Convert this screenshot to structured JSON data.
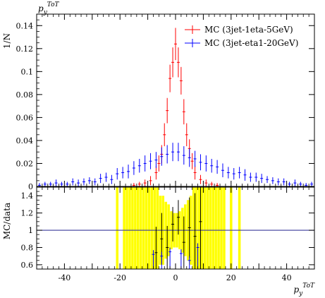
{
  "chart_data": {
    "type": "scatter",
    "title": "",
    "top_panel": {
      "ylabel": "1/N",
      "corner_label": "p_y^ToT",
      "ylim": [
        0,
        0.15
      ],
      "yticks": [
        0,
        0.02,
        0.04,
        0.06,
        0.08,
        0.1,
        0.12,
        0.14
      ],
      "ytick_labels": [
        "0",
        "0.02",
        "0.04",
        "0.06",
        "0.08",
        "0.1",
        "0.12",
        "0.14"
      ],
      "series": [
        {
          "name": "MC (3jet-1eta-5GeV)",
          "color": "#ff0000",
          "x": [
            -15,
            -13,
            -11,
            -9,
            -7,
            -6,
            -5,
            -4,
            -3,
            -2,
            -1,
            0,
            1,
            2,
            3,
            4,
            5,
            6,
            7,
            9,
            11,
            13,
            15
          ],
          "y": [
            0.001,
            0.002,
            0.003,
            0.005,
            0.012,
            0.02,
            0.028,
            0.045,
            0.066,
            0.094,
            0.108,
            0.124,
            0.108,
            0.092,
            0.065,
            0.045,
            0.033,
            0.022,
            0.012,
            0.006,
            0.003,
            0.002,
            0.001
          ],
          "err": [
            0.002,
            0.002,
            0.003,
            0.004,
            0.006,
            0.007,
            0.008,
            0.01,
            0.011,
            0.012,
            0.013,
            0.014,
            0.013,
            0.012,
            0.011,
            0.01,
            0.008,
            0.007,
            0.006,
            0.004,
            0.003,
            0.002,
            0.002
          ]
        },
        {
          "name": "MC (3jet-eta1-20GeV)",
          "color": "#0000ff",
          "x": [
            -49,
            -47,
            -45,
            -43,
            -41,
            -39,
            -37,
            -35,
            -33,
            -31,
            -29,
            -27,
            -25,
            -23,
            -21,
            -19,
            -17,
            -15,
            -13,
            -11,
            -9,
            -7,
            -5,
            -3,
            -1,
            1,
            3,
            5,
            7,
            9,
            11,
            13,
            15,
            17,
            19,
            21,
            23,
            25,
            27,
            29,
            31,
            33,
            35,
            37,
            39,
            41,
            43,
            45,
            47,
            49
          ],
          "y": [
            0.001,
            0.002,
            0.002,
            0.003,
            0.002,
            0.002,
            0.004,
            0.003,
            0.004,
            0.005,
            0.004,
            0.007,
            0.008,
            0.006,
            0.011,
            0.012,
            0.013,
            0.016,
            0.018,
            0.02,
            0.022,
            0.023,
            0.026,
            0.028,
            0.03,
            0.03,
            0.027,
            0.025,
            0.024,
            0.021,
            0.02,
            0.018,
            0.017,
            0.014,
            0.012,
            0.011,
            0.012,
            0.01,
            0.008,
            0.008,
            0.007,
            0.006,
            0.005,
            0.004,
            0.004,
            0.002,
            0.003,
            0.002,
            0.001,
            0.002
          ],
          "err": [
            0.002,
            0.002,
            0.002,
            0.003,
            0.002,
            0.002,
            0.003,
            0.003,
            0.003,
            0.003,
            0.003,
            0.004,
            0.004,
            0.004,
            0.005,
            0.005,
            0.006,
            0.006,
            0.006,
            0.007,
            0.007,
            0.007,
            0.008,
            0.008,
            0.008,
            0.008,
            0.008,
            0.008,
            0.007,
            0.007,
            0.007,
            0.006,
            0.006,
            0.006,
            0.005,
            0.005,
            0.005,
            0.005,
            0.004,
            0.004,
            0.004,
            0.003,
            0.003,
            0.003,
            0.003,
            0.002,
            0.003,
            0.002,
            0.002,
            0.002
          ]
        }
      ],
      "legend_position": "top-right"
    },
    "ratio_panel": {
      "ylabel": "MC/data",
      "ylim": [
        0.55,
        1.5
      ],
      "yticks": [
        0.6,
        0.8,
        1,
        1.2,
        1.4
      ],
      "ytick_labels": [
        "0.6",
        "0.8",
        "1",
        "1.2",
        "1.4"
      ],
      "reference_line": 1,
      "band_color": "#ffff00",
      "band_x": [
        -21,
        -18.5,
        -17.5,
        -16.5,
        -15.5,
        -14.5,
        -13.5,
        -12.5,
        -11.5,
        -10.5,
        -9.5,
        -8.5,
        -7.5,
        -6.5,
        -5.5,
        -4.5,
        -3.5,
        -2.5,
        -1.5,
        -0.5,
        0.5,
        1.5,
        2.5,
        3.5,
        4.5,
        5.5,
        6.5,
        7.5,
        8.5,
        9.5,
        10.5,
        11.5,
        12.5,
        13.5,
        14.5,
        15.5,
        16.5,
        17.5,
        20,
        23
      ],
      "band_halfwidth": [
        0.6,
        0.5,
        0.5,
        0.5,
        0.5,
        0.5,
        0.5,
        0.5,
        0.5,
        0.5,
        0.5,
        0.5,
        0.5,
        0.5,
        0.4,
        0.4,
        0.33,
        0.3,
        0.22,
        0.2,
        0.2,
        0.22,
        0.26,
        0.3,
        0.35,
        0.4,
        0.5,
        0.5,
        0.5,
        0.5,
        0.5,
        0.5,
        0.5,
        0.5,
        0.5,
        0.5,
        0.5,
        0.5,
        0.6,
        0.6
      ],
      "black_points_x": [
        -7,
        -5,
        -3,
        -1,
        1,
        3,
        5,
        7,
        9
      ],
      "black_points_y": [
        0.74,
        0.9,
        0.8,
        1.07,
        1.15,
        0.86,
        1.03,
        0.93,
        1.1
      ],
      "black_points_err": [
        0.3,
        0.3,
        0.25,
        0.2,
        0.2,
        0.3,
        0.35,
        0.5,
        0.6
      ],
      "blue_points_x": [
        -8,
        -5,
        -2,
        2,
        5,
        8
      ],
      "blue_points_y": [
        0.72,
        0.7,
        0.75,
        0.73,
        0.65,
        0.8
      ]
    },
    "xlabel": "p_y^ToT",
    "xlim": [
      -50,
      50
    ],
    "xticks": [
      -40,
      -20,
      0,
      20,
      40
    ],
    "xtick_labels": [
      "-40",
      "-20",
      "0",
      "20",
      "40"
    ]
  }
}
